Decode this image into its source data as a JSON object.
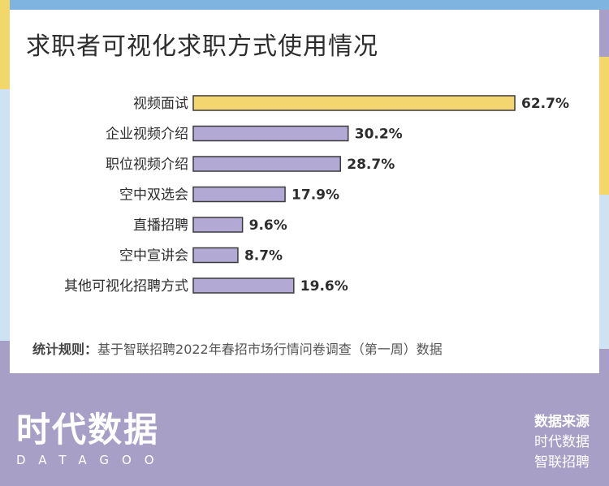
{
  "title": "求职者可视化求职方式使用情况",
  "note_label": "统计规则：",
  "note_text": "基于智联招聘2022年春招市场行情问卷调查（第一周）数据",
  "footer": {
    "logo_cn": "时代数据",
    "logo_en": "DATAGOO",
    "source_title": "数据来源",
    "source_1": "时代数据",
    "source_2": "智联招聘"
  },
  "colors": {
    "highlight": "#f4d670",
    "bar": "#b2a9d5",
    "bar_stroke": "#3b3b3b",
    "background": "#a79fc6"
  },
  "chart_data": {
    "type": "bar",
    "orientation": "horizontal",
    "categories": [
      "视频面试",
      "企业视频介绍",
      "职位视频介绍",
      "空中双选会",
      "直播招聘",
      "空中宣讲会",
      "其他可视化招聘方式"
    ],
    "values": [
      62.7,
      30.2,
      28.7,
      17.9,
      9.6,
      8.7,
      19.6
    ],
    "value_labels": [
      "62.7%",
      "30.2%",
      "28.7%",
      "17.9%",
      "9.6%",
      "8.7%",
      "19.6%"
    ],
    "unit": "%",
    "highlight_index": 0,
    "xlim": [
      0,
      62.7
    ],
    "grid": false,
    "legend": "none"
  }
}
